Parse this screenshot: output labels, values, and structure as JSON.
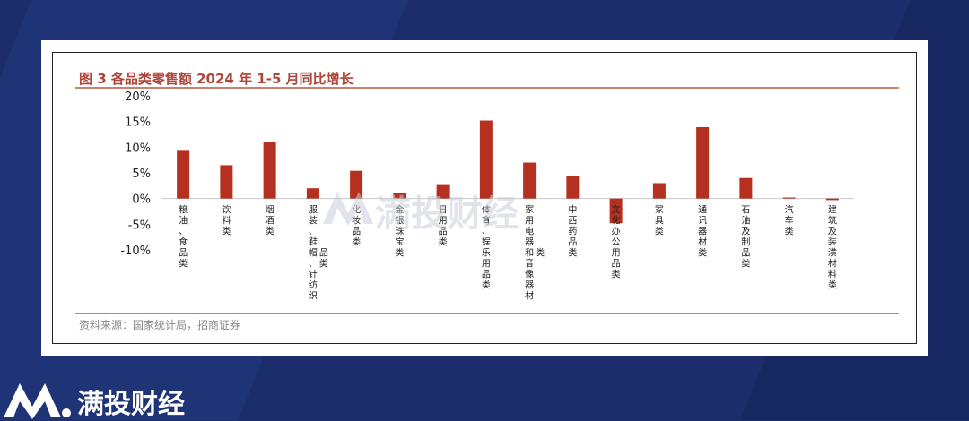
{
  "chart_data": {
    "type": "bar",
    "title": "图 3 各品类零售额 2024 年 1-5 月同比增长",
    "source": "资料来源：国家统计局，招商证券",
    "ylim": [
      -10,
      20
    ],
    "ytick_values": [
      -10,
      -5,
      0,
      5,
      10,
      15,
      20
    ],
    "yticks": [
      "-10%",
      "-5%",
      "0%",
      "5%",
      "10%",
      "15%",
      "20%"
    ],
    "grid": false,
    "bar_color": "#b5301f",
    "categories": [
      [
        "粮油、食品类"
      ],
      [
        "饮料类"
      ],
      [
        "烟酒类"
      ],
      [
        "服装、鞋帽、针纺织",
        "品类"
      ],
      [
        "化妆品类"
      ],
      [
        "金银珠宝类"
      ],
      [
        "日用品类"
      ],
      [
        "体育、娱乐用品类"
      ],
      [
        "家用电器和音像器材",
        "类"
      ],
      [
        "中西药品类"
      ],
      [
        "文化办公用品类"
      ],
      [
        "家具类"
      ],
      [
        "通讯器材类"
      ],
      [
        "石油及制品类"
      ],
      [
        "汽车类"
      ],
      [
        "建筑及装潢材料类"
      ]
    ],
    "values": [
      9.3,
      6.5,
      11.0,
      2.0,
      5.4,
      1.0,
      2.8,
      15.2,
      7.0,
      4.4,
      -4.8,
      3.0,
      13.9,
      4.0,
      0.2,
      -0.3
    ]
  },
  "watermark": {
    "text": "满投财经"
  },
  "brand": {
    "name": "满投财经",
    "accent": "#ffffff",
    "background": "#1b2d6b"
  }
}
